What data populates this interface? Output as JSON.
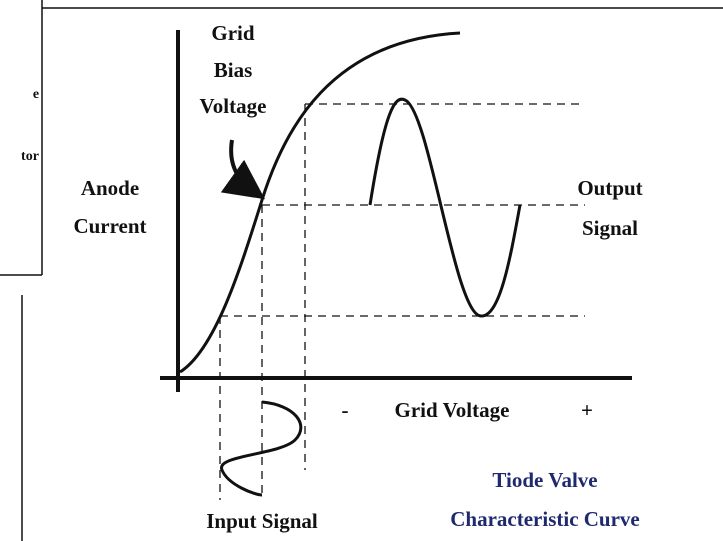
{
  "side_panel": {
    "fragments": [
      "e",
      "tor"
    ]
  },
  "labels": {
    "grid_bias": [
      "Grid",
      "Bias",
      "Voltage"
    ],
    "y_axis": [
      "Anode",
      "Current"
    ],
    "output": [
      "Output",
      "Signal"
    ],
    "x_minus": "-",
    "x_axis": "Grid Voltage",
    "x_plus": "+",
    "input": "Input Signal",
    "caption": [
      "Tiode Valve",
      "Characteristic Curve"
    ]
  }
}
